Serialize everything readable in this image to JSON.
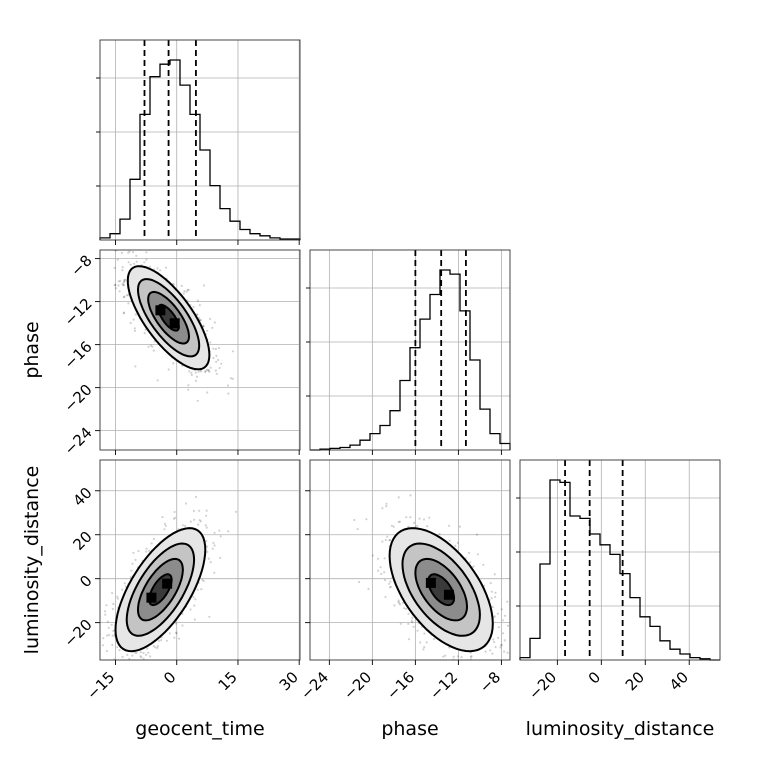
{
  "chart_data": {
    "type": "corner",
    "parameters": [
      "geocent_time",
      "phase",
      "luminosity_distance"
    ],
    "axis_labels": {
      "x": [
        "geocent_time",
        "phase",
        "luminosity_distance"
      ],
      "y": [
        "phase",
        "luminosity_distance"
      ]
    },
    "ranges": {
      "geocent_time": [
        -18.8,
        30.2
      ],
      "phase": [
        -25.8,
        -7.2
      ],
      "luminosity_distance": [
        -37.0,
        54.0
      ]
    },
    "ticks": {
      "geocent_time": [
        -15,
        0,
        15,
        30
      ],
      "phase": [
        -24,
        -20,
        -16,
        -12,
        -8
      ],
      "luminosity_distance": [
        -20,
        0,
        20,
        40
      ]
    },
    "tick_labels": {
      "geocent_time": [
        "−15",
        "0",
        "15",
        "30"
      ],
      "phase": [
        "−24",
        "−20",
        "−16",
        "−12",
        "−8"
      ],
      "luminosity_distance": [
        "−20",
        "0",
        "20",
        "40"
      ]
    },
    "quantiles": {
      "geocent_time": [
        -7.9,
        -2.0,
        4.7
      ],
      "phase": [
        -16.0,
        -13.6,
        -11.3
      ],
      "luminosity_distance": [
        -16.5,
        -5.3,
        9.7
      ]
    },
    "histograms": {
      "geocent_time": {
        "edges": [
          -18.8,
          -16.35,
          -13.9,
          -11.45,
          -9.0,
          -6.55,
          -4.1,
          -1.65,
          0.8,
          3.25,
          5.7,
          8.15,
          10.6,
          13.05,
          15.5,
          17.95,
          20.4,
          22.85,
          25.3,
          27.75,
          30.2
        ],
        "counts": [
          2,
          6,
          20,
          58,
          120,
          156,
          168,
          172,
          148,
          120,
          86,
          52,
          30,
          18,
          10,
          6,
          4,
          2,
          1,
          1
        ]
      },
      "phase": {
        "edges": [
          -25.8,
          -24.87,
          -23.94,
          -23.01,
          -22.08,
          -21.15,
          -20.22,
          -19.29,
          -18.36,
          -17.43,
          -16.5,
          -15.57,
          -14.64,
          -13.71,
          -12.78,
          -11.85,
          -10.92,
          -9.99,
          -9.06,
          -8.13,
          -7.2
        ],
        "counts": [
          0,
          1,
          2,
          3,
          6,
          12,
          20,
          30,
          48,
          85,
          125,
          160,
          190,
          220,
          215,
          170,
          110,
          50,
          20,
          8
        ]
      },
      "luminosity_distance": {
        "edges": [
          -37.0,
          -32.45,
          -27.9,
          -23.35,
          -18.8,
          -14.25,
          -9.7,
          -5.15,
          -0.6,
          3.95,
          8.5,
          13.05,
          17.6,
          22.15,
          26.7,
          31.25,
          35.8,
          40.35,
          44.9,
          49.45,
          54.0
        ],
        "counts": [
          2,
          18,
          80,
          150,
          148,
          120,
          118,
          105,
          96,
          88,
          72,
          52,
          36,
          28,
          16,
          9,
          5,
          2,
          1,
          0
        ]
      }
    },
    "pairs": [
      {
        "x": "geocent_time",
        "y": "phase",
        "mean": [
          -2.0,
          -13.5
        ],
        "sd": [
          5.0,
          2.4
        ],
        "rho": -0.72
      },
      {
        "x": "geocent_time",
        "y": "luminosity_distance",
        "mean": [
          -4.0,
          -5.0
        ],
        "sd": [
          5.5,
          14.0
        ],
        "rho": 0.65
      },
      {
        "x": "phase",
        "y": "luminosity_distance",
        "mean": [
          -13.6,
          -5.0
        ],
        "sd": [
          2.4,
          14.0
        ],
        "rho": -0.55
      }
    ],
    "contour_levels_sigma": [
      0.5,
      1.0,
      1.5,
      2.0
    ],
    "grid": true
  }
}
